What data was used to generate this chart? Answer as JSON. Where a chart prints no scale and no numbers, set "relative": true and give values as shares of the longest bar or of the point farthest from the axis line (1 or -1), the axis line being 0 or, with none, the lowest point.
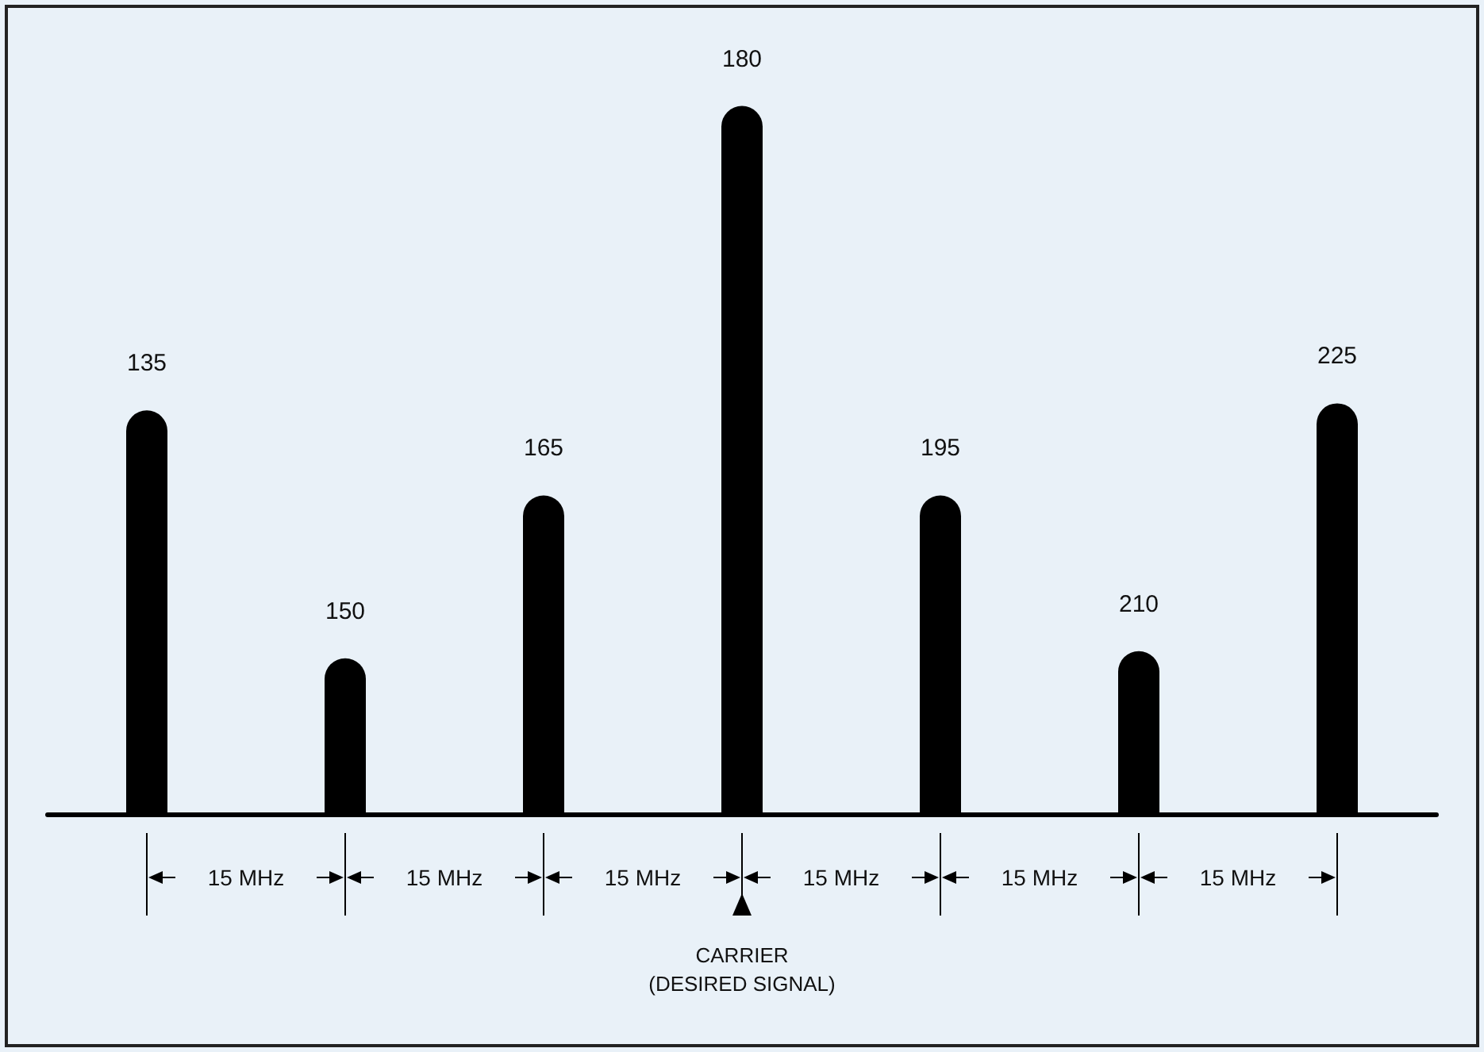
{
  "chart_data": {
    "type": "bar",
    "relative": true,
    "categories": [
      "135",
      "150",
      "165",
      "180",
      "195",
      "210",
      "225"
    ],
    "values": [
      0.57,
      0.22,
      0.45,
      1,
      0.45,
      0.23,
      0.58
    ],
    "color": "#000000",
    "annotations": [
      "15 MHz",
      "15 MHz",
      "15 MHz",
      "15 MHz",
      "15 MHz",
      "15 MHz",
      "CARRIER\n(DESIRED SIGNAL)"
    ]
  }
}
